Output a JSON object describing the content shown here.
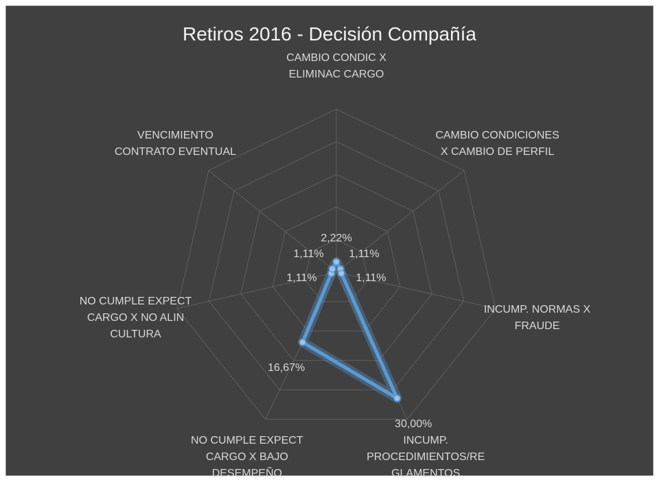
{
  "chart_data": {
    "type": "radar",
    "title": "Retiros 2016 - Decisión Compañía",
    "categories": [
      "CAMBIO CONDIC X ELIMINAC CARGO",
      "CAMBIO CONDICIONES X CAMBIO DE PERFIL",
      "INCUMP. NORMAS X FRAUDE",
      "INCUMP. PROCEDIMIENTOS/RE GLAMENTOS",
      "NO CUMPLE EXPECT CARGO X BAJO DESEMPEÑO",
      "NO CUMPLE EXPECT CARGO X NO ALIN CULTURA",
      "VENCIMIENTO CONTRATO EVENTUAL"
    ],
    "values": [
      2.22,
      1.11,
      1.11,
      30.0,
      16.67,
      1.11,
      1.11
    ],
    "value_labels": [
      "2,22%",
      "1,11%",
      "1,11%",
      "30,00%",
      "16,67%",
      "1,11%",
      "1,11%"
    ],
    "color": "#5b9bd5",
    "ylim": [
      0,
      35
    ],
    "yticks": [
      0,
      7,
      14,
      21,
      28,
      35
    ],
    "grid": true
  }
}
